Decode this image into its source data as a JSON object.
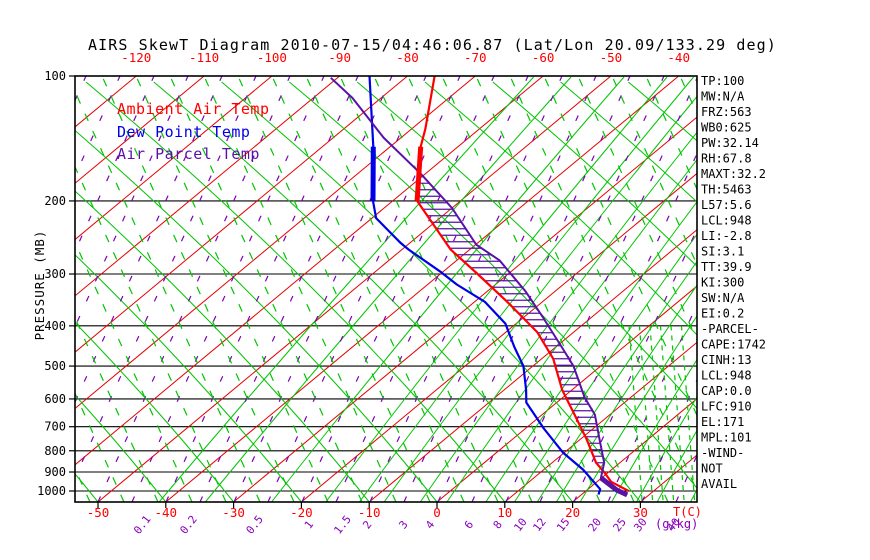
{
  "title": "AIRS SkewT Diagram 2010-07-15/04:46:06.87 (Lat/Lon 20.09/133.29 deg)",
  "stats_panel": {
    "lines": [
      "TP:100",
      "MW:N/A",
      "FRZ:563",
      "WB0:625",
      "PW:32.14",
      "RH:67.8",
      "MAXT:32.2",
      "TH:5463",
      "L57:5.6",
      "LCL:948",
      "LI:-2.8",
      "SI:3.1",
      "TT:39.9",
      "KI:300",
      "SW:N/A",
      "EI:0.2",
      "-PARCEL-",
      "CAPE:1742",
      "CINH:13",
      "LCL:948",
      "CAP:0.0",
      "LFC:910",
      "EL:171",
      "MPL:101",
      "-WIND-",
      "NOT",
      "AVAIL"
    ]
  },
  "chart_data": {
    "type": "line",
    "chart_kind": "skew-t-log-p",
    "pressure_axis": {
      "label": "PRESSURE (MB)",
      "scale": "log",
      "ticks": [
        100,
        200,
        300,
        400,
        500,
        600,
        700,
        800,
        900,
        1000
      ],
      "range": [
        100,
        1063
      ]
    },
    "temp_axis_bottom": {
      "unit_label": "T(C)",
      "ticks": [
        -50,
        -40,
        -30,
        -20,
        -10,
        0,
        10,
        20,
        30
      ],
      "color": "#ff0000"
    },
    "temp_axis_top": {
      "ticks": [
        -120,
        -110,
        -100,
        -90,
        -80,
        -70,
        -60,
        -50,
        -40
      ],
      "color": "#ff0000"
    },
    "mixing_ratio_lines": {
      "unit_label": "(g/kg)",
      "values": [
        0.1,
        0.2,
        0.5,
        1,
        1.5,
        2,
        3,
        4,
        6,
        8,
        10,
        12,
        15,
        20,
        25,
        30,
        40
      ],
      "label_color": "#8800bb",
      "line_color": "#00c400"
    },
    "grid_colors": {
      "isotherm": "#e60000",
      "dry_adiabat": "#00c400",
      "moist_adiabat_dash": "#7d00b8",
      "green_dash": "#00c400",
      "pressure_line": "#000000"
    },
    "series": [
      {
        "name": "Ambient Air Temp",
        "color": "#ff0000",
        "points": [
          [
            100,
            -76
          ],
          [
            134,
            -68
          ],
          [
            148,
            -65.5
          ],
          [
            200,
            -56.4
          ],
          [
            262,
            -42.8
          ],
          [
            300,
            -34.5
          ],
          [
            350,
            -25.2
          ],
          [
            414,
            -15.4
          ],
          [
            480,
            -8.3
          ],
          [
            570,
            -1.5
          ],
          [
            655,
            4.8
          ],
          [
            750,
            10.9
          ],
          [
            855,
            16.5
          ],
          [
            900,
            19.3
          ],
          [
            950,
            22.1
          ],
          [
            1000,
            26.3
          ]
        ]
      },
      {
        "name": "Dew Point Temp",
        "color": "#0000e8",
        "points": [
          [
            100,
            -85.6
          ],
          [
            148,
            -72.5
          ],
          [
            200,
            -62.9
          ],
          [
            220,
            -59.4
          ],
          [
            252,
            -51.5
          ],
          [
            262,
            -49
          ],
          [
            297,
            -40.2
          ],
          [
            318,
            -35.7
          ],
          [
            350,
            -28.5
          ],
          [
            395,
            -21.6
          ],
          [
            450,
            -16.1
          ],
          [
            500,
            -11.4
          ],
          [
            570,
            -6.8
          ],
          [
            612,
            -4.5
          ],
          [
            707,
            2.7
          ],
          [
            808,
            9.8
          ],
          [
            888,
            15.8
          ],
          [
            990,
            21.8
          ],
          [
            1020,
            22.5
          ]
        ]
      },
      {
        "name": "Air Parcel Temp",
        "color": "#5812a8",
        "points": [
          [
            101,
            -91
          ],
          [
            113,
            -84.2
          ],
          [
            141,
            -72.5
          ],
          [
            172,
            -60.7
          ],
          [
            208,
            -50
          ],
          [
            255,
            -39.9
          ],
          [
            278,
            -33.7
          ],
          [
            330,
            -24.4
          ],
          [
            382,
            -17.1
          ],
          [
            450,
            -9.1
          ],
          [
            500,
            -4
          ],
          [
            595,
            3.2
          ],
          [
            655,
            7.8
          ],
          [
            750,
            12.8
          ],
          [
            855,
            17.7
          ],
          [
            930,
            19.9
          ],
          [
            995,
            24.4
          ],
          [
            1022,
            26.8
          ]
        ]
      }
    ],
    "cape_hatch": {
      "between": [
        "Ambient Air Temp",
        "Air Parcel Temp"
      ],
      "pressure_range": [
        172,
        910
      ],
      "color": "#5812a8"
    },
    "thick_segment_pressure_range": [
      148,
      200
    ],
    "parcel_thick_pressure_range": [
      930,
      1022
    ]
  }
}
